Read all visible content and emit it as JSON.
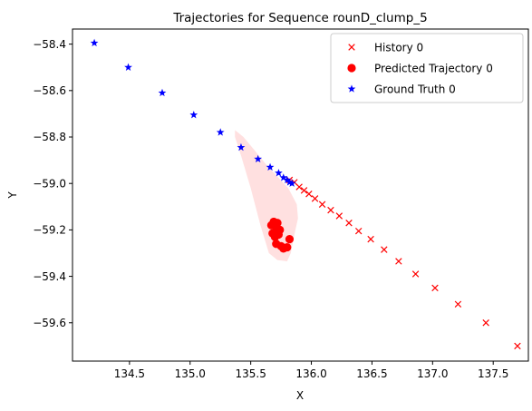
{
  "chart_data": {
    "type": "scatter",
    "title": "Trajectories for Sequence rounD_clump_5",
    "xlabel": "X",
    "ylabel": "Y",
    "xlim": [
      134.03,
      137.79
    ],
    "ylim": [
      -59.765,
      -58.335
    ],
    "xticks": [
      134.5,
      135.0,
      135.5,
      136.0,
      136.5,
      137.0,
      137.5
    ],
    "xtick_labels": [
      "134.5",
      "135.0",
      "135.5",
      "136.0",
      "136.5",
      "137.0",
      "137.5"
    ],
    "yticks": [
      -58.4,
      -58.6,
      -58.8,
      -59.0,
      -59.2,
      -59.4,
      -59.6
    ],
    "ytick_labels": [
      "−58.4",
      "−58.6",
      "−58.8",
      "−59.0",
      "−59.2",
      "−59.4",
      "−59.6"
    ],
    "grid": false,
    "legend_position": "top-right",
    "series": [
      {
        "name": "History 0",
        "marker": "x",
        "color": "#ff0000",
        "points": [
          [
            137.7,
            -59.7
          ],
          [
            137.44,
            -59.6
          ],
          [
            137.21,
            -59.52
          ],
          [
            137.02,
            -59.45
          ],
          [
            136.86,
            -59.39
          ],
          [
            136.72,
            -59.335
          ],
          [
            136.6,
            -59.285
          ],
          [
            136.49,
            -59.24
          ],
          [
            136.39,
            -59.205
          ],
          [
            136.31,
            -59.17
          ],
          [
            136.23,
            -59.14
          ],
          [
            136.16,
            -59.115
          ],
          [
            136.09,
            -59.09
          ],
          [
            136.03,
            -59.065
          ],
          [
            135.98,
            -59.045
          ],
          [
            135.94,
            -59.03
          ],
          [
            135.9,
            -59.015
          ],
          [
            135.86,
            -58.995
          ],
          [
            135.82,
            -58.985
          ]
        ]
      },
      {
        "name": "Predicted Trajectory 0",
        "marker": "o",
        "color": "#ff0000",
        "points": [
          [
            135.69,
            -59.165
          ],
          [
            135.72,
            -59.17
          ],
          [
            135.67,
            -59.18
          ],
          [
            135.71,
            -59.19
          ],
          [
            135.74,
            -59.2
          ],
          [
            135.68,
            -59.215
          ],
          [
            135.73,
            -59.22
          ],
          [
            135.7,
            -59.23
          ],
          [
            135.82,
            -59.24
          ],
          [
            135.71,
            -59.26
          ],
          [
            135.75,
            -59.27
          ],
          [
            135.8,
            -59.275
          ],
          [
            135.77,
            -59.28
          ]
        ]
      },
      {
        "name": "Ground Truth 0",
        "marker": "*",
        "color": "#0000ff",
        "points": [
          [
            134.21,
            -58.395
          ],
          [
            134.49,
            -58.5
          ],
          [
            134.77,
            -58.61
          ],
          [
            135.03,
            -58.705
          ],
          [
            135.25,
            -58.78
          ],
          [
            135.42,
            -58.845
          ],
          [
            135.56,
            -58.895
          ],
          [
            135.66,
            -58.93
          ],
          [
            135.73,
            -58.955
          ],
          [
            135.77,
            -58.975
          ],
          [
            135.8,
            -58.985
          ],
          [
            135.82,
            -58.995
          ],
          [
            135.84,
            -59.0
          ]
        ]
      }
    ],
    "uncertainty_region": {
      "color": "#ffcccc",
      "polygon": [
        [
          135.37,
          -58.77
        ],
        [
          135.44,
          -58.8
        ],
        [
          135.52,
          -58.85
        ],
        [
          135.63,
          -58.92
        ],
        [
          135.72,
          -58.97
        ],
        [
          135.81,
          -59.02
        ],
        [
          135.88,
          -59.09
        ],
        [
          135.89,
          -59.15
        ],
        [
          135.86,
          -59.22
        ],
        [
          135.83,
          -59.3
        ],
        [
          135.8,
          -59.335
        ],
        [
          135.72,
          -59.33
        ],
        [
          135.65,
          -59.3
        ],
        [
          135.58,
          -59.18
        ],
        [
          135.5,
          -59.02
        ],
        [
          135.42,
          -58.88
        ],
        [
          135.37,
          -58.8
        ]
      ]
    }
  }
}
